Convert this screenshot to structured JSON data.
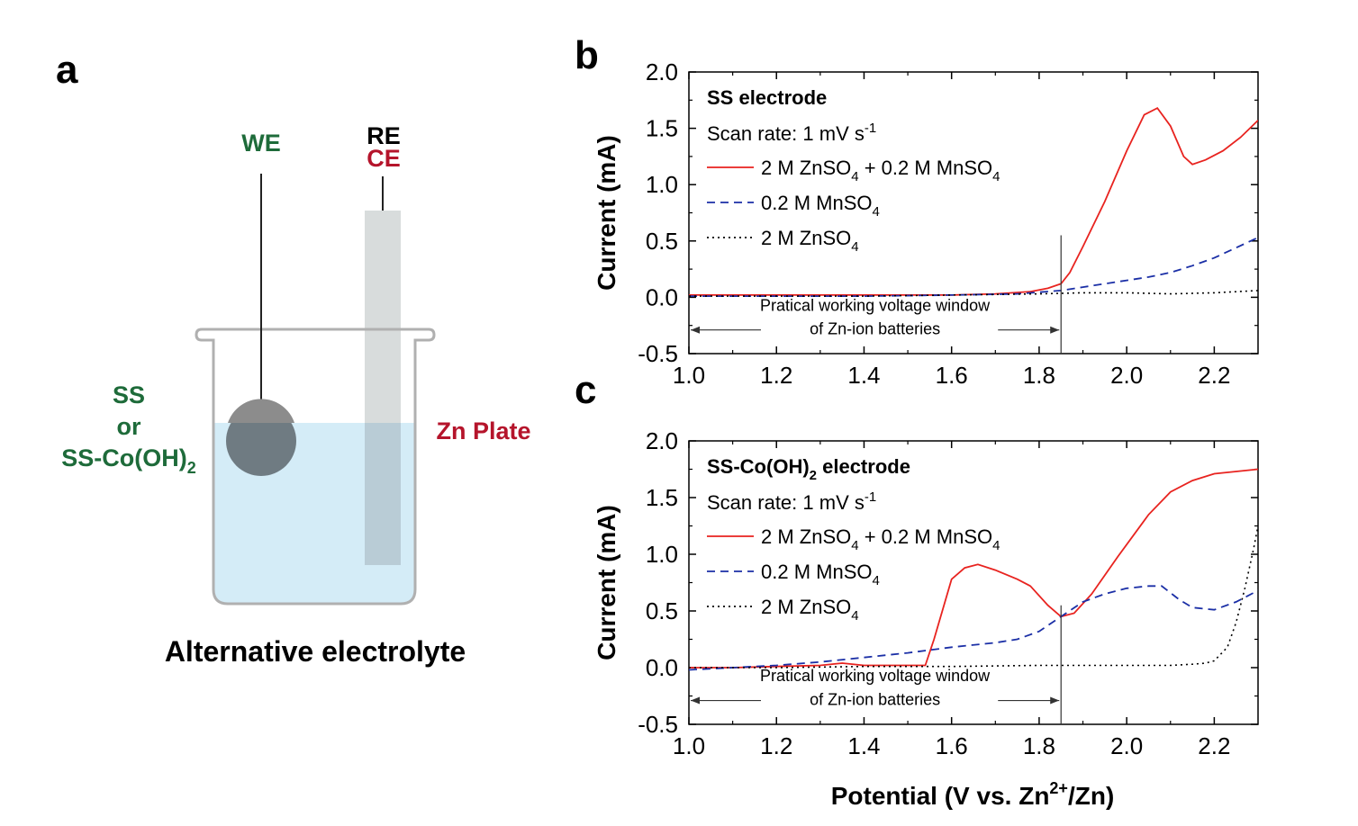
{
  "panel_a": {
    "letter": "a",
    "we_label": "WE",
    "re_label": "RE",
    "ce_label": "CE",
    "ss_label": "SS",
    "or_label": "or",
    "ss_co_label": "SS-Co(OH)",
    "ss_co_sub": "2",
    "zn_plate_label": "Zn Plate",
    "caption": "Alternative electrolyte",
    "colors": {
      "green": "#1e6b3a",
      "red": "#b5142b",
      "electrolyte": "#d4ecf7",
      "beaker": "#b0b0b0",
      "ce_rod": "#d8dcdc",
      "we_disk": "#6f7b82"
    }
  },
  "chart_data": [
    {
      "type": "line",
      "panel": "b",
      "title": "SS electrode",
      "title_sub": "",
      "title_rest": "",
      "scan_rate": "Scan rate: 1 mV s",
      "scan_rate_sup": "-1",
      "xlabel": "Potential (V vs. Zn",
      "xlabel_sup": "2+",
      "xlabel_rest": "/Zn)",
      "ylabel": "Current (mA)",
      "xlim": [
        1.0,
        2.3
      ],
      "ylim": [
        -0.5,
        2.0
      ],
      "x_ticks": [
        "1.0",
        "1.2",
        "1.4",
        "1.6",
        "1.8",
        "2.0",
        "2.2"
      ],
      "y_ticks": [
        "-0.5",
        "0.0",
        "0.5",
        "1.0",
        "1.5",
        "2.0"
      ],
      "window_line_x": 1.85,
      "window_text_1": "Pratical working voltage window",
      "window_text_2": "of Zn-ion batteries",
      "series": [
        {
          "name": "2 M ZnSO",
          "sub1": "4",
          "mid": " + 0.2 M MnSO",
          "sub2": "4",
          "color": "#e8231f",
          "style": "solid",
          "x": [
            1.0,
            1.2,
            1.4,
            1.6,
            1.7,
            1.78,
            1.82,
            1.85,
            1.87,
            1.9,
            1.95,
            2.0,
            2.04,
            2.07,
            2.1,
            2.13,
            2.15,
            2.18,
            2.22,
            2.26,
            2.3
          ],
          "y": [
            0.02,
            0.02,
            0.02,
            0.02,
            0.03,
            0.05,
            0.08,
            0.12,
            0.22,
            0.45,
            0.85,
            1.3,
            1.62,
            1.68,
            1.52,
            1.25,
            1.18,
            1.22,
            1.3,
            1.42,
            1.57
          ]
        },
        {
          "name": "0.2 M MnSO",
          "sub1": "4",
          "mid": "",
          "sub2": "",
          "color": "#1b2fa6",
          "style": "dashed",
          "x": [
            1.0,
            1.2,
            1.4,
            1.6,
            1.75,
            1.85,
            1.9,
            2.0,
            2.05,
            2.1,
            2.15,
            2.2,
            2.25,
            2.3
          ],
          "y": [
            0.01,
            0.01,
            0.01,
            0.02,
            0.03,
            0.06,
            0.09,
            0.15,
            0.18,
            0.22,
            0.28,
            0.35,
            0.44,
            0.53
          ]
        },
        {
          "name": "2 M ZnSO",
          "sub1": "4",
          "mid": "",
          "sub2": "",
          "color": "#000000",
          "style": "dotted",
          "x": [
            1.0,
            1.2,
            1.4,
            1.6,
            1.8,
            1.9,
            2.0,
            2.1,
            2.2,
            2.3
          ],
          "y": [
            0.01,
            0.01,
            0.01,
            0.02,
            0.03,
            0.04,
            0.04,
            0.03,
            0.04,
            0.06
          ]
        }
      ]
    },
    {
      "type": "line",
      "panel": "c",
      "title": "SS-Co(OH)",
      "title_sub": "2",
      "title_rest": " electrode",
      "scan_rate": "Scan rate: 1 mV s",
      "scan_rate_sup": "-1",
      "xlabel": "Potential (V vs. Zn",
      "xlabel_sup": "2+",
      "xlabel_rest": "/Zn)",
      "ylabel": "Current (mA)",
      "xlim": [
        1.0,
        2.3
      ],
      "ylim": [
        -0.5,
        2.0
      ],
      "x_ticks": [
        "1.0",
        "1.2",
        "1.4",
        "1.6",
        "1.8",
        "2.0",
        "2.2"
      ],
      "y_ticks": [
        "-0.5",
        "0.0",
        "0.5",
        "1.0",
        "1.5",
        "2.0"
      ],
      "window_line_x": 1.85,
      "window_text_1": "Pratical working voltage window",
      "window_text_2": "of Zn-ion batteries",
      "series": [
        {
          "name": "2 M ZnSO",
          "sub1": "4",
          "mid": " + 0.2 M MnSO",
          "sub2": "4",
          "color": "#e8231f",
          "style": "solid",
          "x": [
            1.0,
            1.1,
            1.2,
            1.3,
            1.35,
            1.4,
            1.5,
            1.54,
            1.56,
            1.6,
            1.63,
            1.66,
            1.7,
            1.75,
            1.78,
            1.82,
            1.85,
            1.88,
            1.92,
            1.98,
            2.05,
            2.1,
            2.15,
            2.2,
            2.25,
            2.3
          ],
          "y": [
            0.0,
            0.0,
            0.01,
            0.02,
            0.04,
            0.02,
            0.02,
            0.02,
            0.25,
            0.78,
            0.88,
            0.91,
            0.86,
            0.78,
            0.72,
            0.55,
            0.45,
            0.48,
            0.65,
            0.98,
            1.35,
            1.55,
            1.65,
            1.71,
            1.73,
            1.75
          ]
        },
        {
          "name": "0.2 M MnSO",
          "sub1": "4",
          "mid": "",
          "sub2": "",
          "color": "#1b2fa6",
          "style": "dashed",
          "x": [
            1.0,
            1.1,
            1.2,
            1.3,
            1.4,
            1.5,
            1.6,
            1.7,
            1.75,
            1.8,
            1.85,
            1.9,
            1.95,
            2.0,
            2.05,
            2.08,
            2.12,
            2.15,
            2.2,
            2.25,
            2.3
          ],
          "y": [
            -0.02,
            0.0,
            0.02,
            0.05,
            0.09,
            0.13,
            0.18,
            0.22,
            0.25,
            0.32,
            0.45,
            0.58,
            0.65,
            0.7,
            0.72,
            0.72,
            0.6,
            0.53,
            0.51,
            0.58,
            0.68
          ]
        },
        {
          "name": "2 M ZnSO",
          "sub1": "4",
          "mid": "",
          "sub2": "",
          "color": "#000000",
          "style": "dotted",
          "x": [
            1.0,
            1.2,
            1.4,
            1.6,
            1.8,
            2.0,
            2.1,
            2.15,
            2.18,
            2.2,
            2.23,
            2.25,
            2.27,
            2.29,
            2.3
          ],
          "y": [
            0.0,
            0.0,
            0.01,
            0.01,
            0.02,
            0.02,
            0.02,
            0.03,
            0.04,
            0.06,
            0.18,
            0.4,
            0.7,
            1.05,
            1.25
          ]
        }
      ]
    }
  ]
}
